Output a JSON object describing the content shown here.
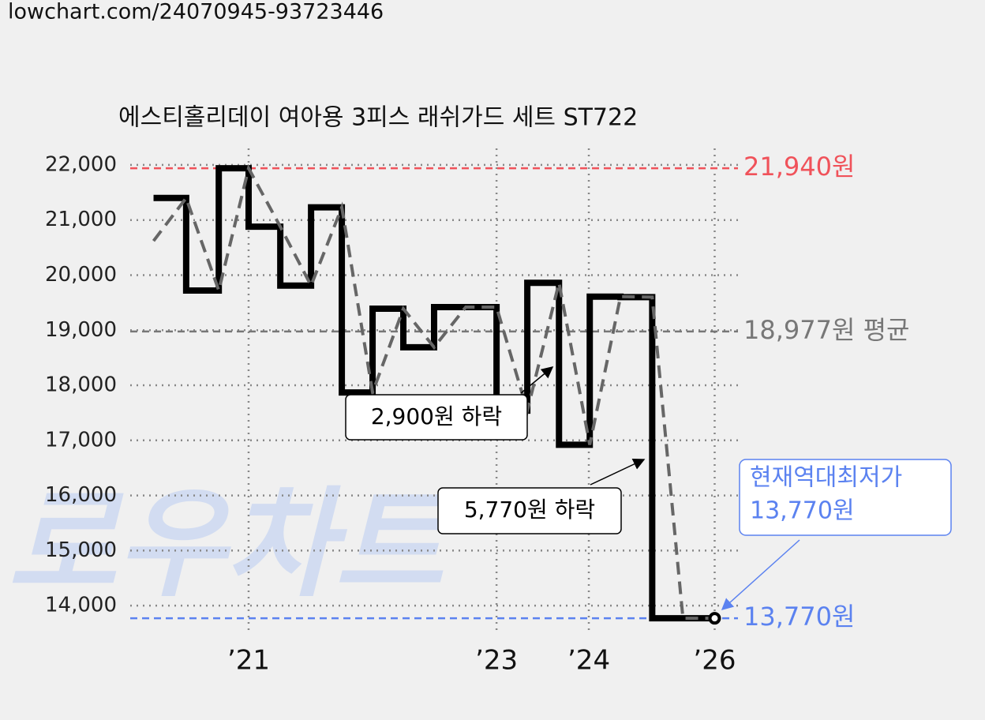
{
  "source_url": "lowchart.com/24070945-93723446",
  "chart_data": {
    "type": "line",
    "title": "에스티홀리데이 여아용 3피스 래쉬가드 세트 ST722",
    "watermark": "로우차트",
    "xlim": [
      2019.73,
      2026.25
    ],
    "ylim": [
      13500,
      22300
    ],
    "xticks": [
      {
        "value": 2021,
        "label": "’21"
      },
      {
        "value": 2023.66,
        "label": "’23"
      },
      {
        "value": 2024.65,
        "label": "’24"
      },
      {
        "value": 2026,
        "label": "’26"
      }
    ],
    "yticks": [
      {
        "value": 14000,
        "label": "14,000"
      },
      {
        "value": 15000,
        "label": "15,000"
      },
      {
        "value": 16000,
        "label": "16,000"
      },
      {
        "value": 17000,
        "label": "17,000"
      },
      {
        "value": 18000,
        "label": "18,000"
      },
      {
        "value": 19000,
        "label": "19,000"
      },
      {
        "value": 20000,
        "label": "20,000"
      },
      {
        "value": 21000,
        "label": "21,000"
      },
      {
        "value": 22000,
        "label": "22,000"
      }
    ],
    "grid": true,
    "series": [
      {
        "color": "#000000",
        "style": "step",
        "x": [
          2019.98,
          2020.33,
          2020.68,
          2021.0,
          2021.34,
          2021.67,
          2022.0,
          2022.33,
          2022.66,
          2022.99,
          2023.66,
          2023.99,
          2024.33,
          2024.66,
          2024.99,
          2025.33,
          2025.66,
          2026.0
        ],
        "values": [
          21400,
          19720,
          21940,
          20880,
          19810,
          21230,
          17870,
          19390,
          18690,
          19420,
          17540,
          19860,
          16920,
          19610,
          19600,
          13770,
          13770,
          13770
        ]
      },
      {
        "color": "#666666",
        "style": "dashed",
        "x": [
          2019.98,
          2020.33,
          2020.68,
          2021.0,
          2021.34,
          2021.67,
          2022.0,
          2022.33,
          2022.66,
          2022.99,
          2023.33,
          2023.66,
          2023.99,
          2024.33,
          2024.66,
          2024.99,
          2025.33,
          2025.66,
          2026.0
        ],
        "values": [
          20620,
          21400,
          19720,
          21940,
          20880,
          19810,
          21230,
          17870,
          19390,
          18690,
          19420,
          19420,
          17540,
          19860,
          16920,
          19610,
          19600,
          13770,
          13770
        ]
      }
    ],
    "reference_lines": [
      {
        "value": 21940,
        "label": "21,940원",
        "color": "#f0525a"
      },
      {
        "value": 18977,
        "label": "18,977원 평균",
        "color": "#777777"
      },
      {
        "value": 13770,
        "label": "13,770원",
        "color": "#5b82f0"
      }
    ],
    "annotations": [
      {
        "text": "2,900원 하락",
        "color": "#000000"
      },
      {
        "text": "5,770원 하락",
        "color": "#000000"
      },
      {
        "text": "현재역대최저가",
        "value_text": "13,770원",
        "color": "#5b82f0"
      }
    ]
  }
}
